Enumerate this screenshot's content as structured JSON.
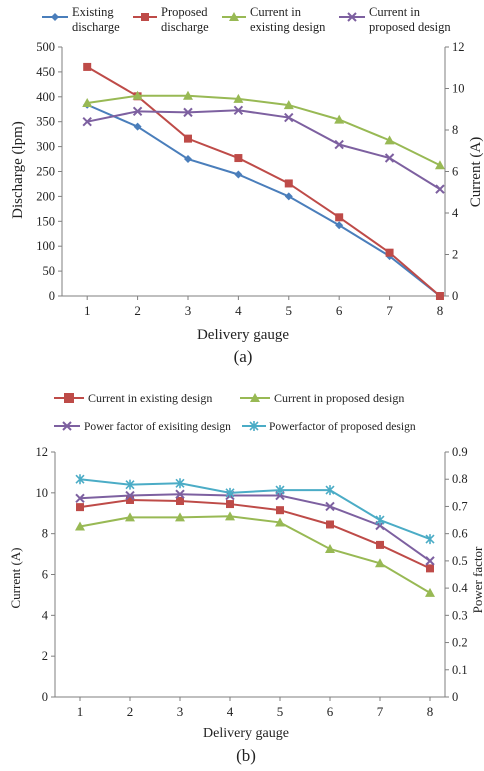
{
  "chart_data": [
    {
      "type": "line",
      "caption": "(a)",
      "xlabel": "Delivery gauge",
      "ylabel_left": "Discharge (lpm)",
      "ylabel_right": "Current (A)",
      "x": [
        1,
        2,
        3,
        4,
        5,
        6,
        7,
        8
      ],
      "x_ticks": [
        "1",
        "2",
        "3",
        "4",
        "5",
        "6",
        "7",
        "8"
      ],
      "xlim": [
        0.5,
        8.1
      ],
      "ylim_left": [
        0,
        500
      ],
      "ylim_right": [
        0,
        12
      ],
      "yticks_left": [
        "0",
        "50",
        "100",
        "150",
        "200",
        "250",
        "300",
        "350",
        "400",
        "450",
        "500"
      ],
      "yticks_right": [
        "0",
        "2",
        "4",
        "6",
        "8",
        "10",
        "12"
      ],
      "grid": false,
      "legend_position": "top",
      "series": [
        {
          "name": "Existing discharge",
          "axis": "left",
          "color": "#4a7ebb",
          "marker": "diamond",
          "values": [
            384,
            340,
            275,
            244,
            200,
            142,
            80,
            0
          ]
        },
        {
          "name": "Proposed discharge",
          "axis": "left",
          "color": "#be4b48",
          "marker": "square",
          "values": [
            460,
            401,
            316,
            277,
            226,
            158,
            87,
            0
          ]
        },
        {
          "name": "Current in existing design",
          "axis": "right",
          "color": "#98b954",
          "marker": "triangle",
          "values": [
            9.3,
            9.65,
            9.65,
            9.5,
            9.2,
            8.5,
            7.5,
            6.3
          ]
        },
        {
          "name": "Current in proposed design",
          "axis": "right",
          "color": "#7d60a0",
          "marker": "x",
          "values": [
            8.4,
            8.9,
            8.85,
            8.95,
            8.6,
            7.3,
            6.65,
            5.15
          ]
        }
      ]
    },
    {
      "type": "line",
      "caption": "(b)",
      "xlabel": "Delivery gauge",
      "ylabel_left": "Current (A)",
      "ylabel_right": "Power factor",
      "x": [
        1,
        2,
        3,
        4,
        5,
        6,
        7,
        8
      ],
      "x_ticks": [
        "1",
        "2",
        "3",
        "4",
        "5",
        "6",
        "7",
        "8"
      ],
      "xlim": [
        0.5,
        8.3
      ],
      "ylim_left": [
        0,
        12
      ],
      "ylim_right": [
        0,
        0.9
      ],
      "yticks_left": [
        "0",
        "2",
        "4",
        "6",
        "8",
        "10",
        "12"
      ],
      "yticks_right": [
        "0",
        "0.1",
        "0.2",
        "0.3",
        "0.4",
        "0.5",
        "0.6",
        "0.7",
        "0.8",
        "0.9"
      ],
      "grid": false,
      "legend_position": "top",
      "series": [
        {
          "name": "Current in existing design",
          "axis": "left",
          "color": "#be4b48",
          "marker": "square",
          "values": [
            9.3,
            9.65,
            9.6,
            9.45,
            9.15,
            8.45,
            7.45,
            6.3
          ]
        },
        {
          "name": "Current in proposed design",
          "axis": "left",
          "color": "#98b954",
          "marker": "triangle",
          "values": [
            8.35,
            8.8,
            8.8,
            8.85,
            8.55,
            7.25,
            6.55,
            5.1
          ]
        },
        {
          "name": "Power factor of exisiting  design",
          "axis": "right",
          "color": "#7d60a0",
          "marker": "x",
          "values": [
            0.73,
            0.74,
            0.745,
            0.74,
            0.74,
            0.7,
            0.63,
            0.5
          ]
        },
        {
          "name": "Powerfactor of proposed design",
          "axis": "right",
          "color": "#4bacc6",
          "marker": "star",
          "values": [
            0.8,
            0.78,
            0.785,
            0.75,
            0.76,
            0.76,
            0.65,
            0.58
          ]
        }
      ]
    }
  ]
}
